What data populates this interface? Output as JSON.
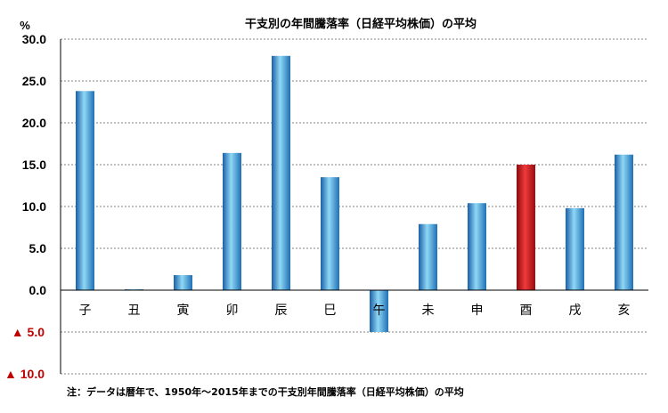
{
  "chart_data": {
    "type": "bar",
    "title": "干支別の年間騰落率（日経平均株価）の平均",
    "ylabel": "%",
    "categories": [
      "子",
      "丑",
      "寅",
      "卯",
      "辰",
      "巳",
      "午",
      "未",
      "申",
      "酉",
      "戌",
      "亥"
    ],
    "values": [
      23.8,
      0.1,
      1.8,
      16.4,
      28.0,
      13.5,
      -5.0,
      7.9,
      10.4,
      15.0,
      9.8,
      16.2
    ],
    "highlight_index": 9,
    "ylim": [
      -10,
      30
    ],
    "yticks": [
      {
        "value": 30,
        "label": "30.0"
      },
      {
        "value": 25,
        "label": "25.0"
      },
      {
        "value": 20,
        "label": "20.0"
      },
      {
        "value": 15,
        "label": "15.0"
      },
      {
        "value": 10,
        "label": "10.0"
      },
      {
        "value": 5,
        "label": "5.0"
      },
      {
        "value": 0,
        "label": "0.0"
      },
      {
        "value": -5,
        "label": "▲ 5.0"
      },
      {
        "value": -10,
        "label": "▲ 10.0"
      }
    ],
    "grid": true,
    "note": "注：データは暦年で、1950年～2015年までの干支別年間騰落率（日経平均株価）の平均",
    "colors": {
      "bar": "#3aa6dc",
      "bar_highlight": "#d0141b",
      "negative_tick": "#c00000",
      "axis": "#000000",
      "grid": "#808080"
    }
  }
}
